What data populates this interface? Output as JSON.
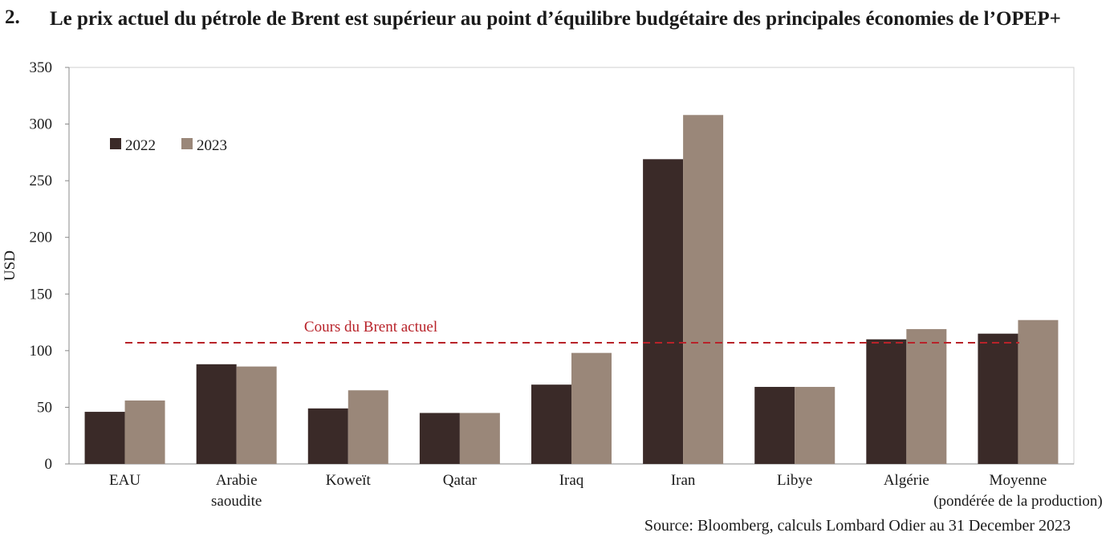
{
  "title": {
    "number": "2.",
    "text": "Le prix actuel du pétrole de Brent est supérieur au point d’équilibre budgétaire des principales économies de l’OPEP+"
  },
  "source": "Source: Bloomberg, calculs Lombard Odier au 31 December 2023",
  "colors": {
    "s2022": "#3a2a28",
    "s2023": "#9a8779",
    "reference": "#b8232a",
    "axis": "#888888"
  },
  "chart_data": {
    "type": "bar",
    "ylabel": "USD",
    "ylim": [
      0,
      350
    ],
    "yticks": [
      0,
      50,
      100,
      150,
      200,
      250,
      300,
      350
    ],
    "grid": false,
    "legend_position": "top-left",
    "categories": [
      [
        "EAU"
      ],
      [
        "Arabie",
        "saoudite"
      ],
      [
        "Koweït"
      ],
      [
        "Qatar"
      ],
      [
        "Iraq"
      ],
      [
        "Iran"
      ],
      [
        "Libye"
      ],
      [
        "Algérie"
      ],
      [
        "Moyenne",
        "(pondérée de la production)"
      ]
    ],
    "series": [
      {
        "name": "2022",
        "values": [
          46,
          88,
          49,
          45,
          70,
          269,
          68,
          110,
          115
        ]
      },
      {
        "name": "2023",
        "values": [
          56,
          86,
          65,
          45,
          98,
          308,
          68,
          119,
          127
        ]
      }
    ],
    "reference_line": {
      "label": "Cours du Brent actuel",
      "value": 107
    }
  }
}
